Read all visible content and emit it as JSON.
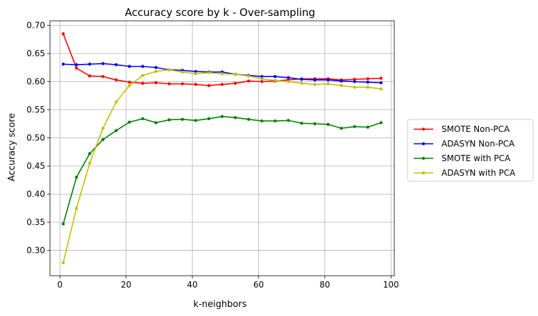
{
  "chart_data": {
    "type": "line",
    "title": "Accuracy score by k - Over-sampling",
    "xlabel": "k-neighbors",
    "ylabel": "Accuracy score",
    "xlim": [
      -3,
      101
    ],
    "ylim": [
      0.255,
      0.708
    ],
    "xticks": [
      0,
      20,
      40,
      60,
      80,
      100
    ],
    "xtick_labels": [
      "0",
      "20",
      "40",
      "60",
      "80",
      "100"
    ],
    "yticks": [
      0.3,
      0.35,
      0.4,
      0.45,
      0.5,
      0.55,
      0.6,
      0.65,
      0.7
    ],
    "ytick_labels": [
      "0.30",
      "0.35",
      "0.40",
      "0.45",
      "0.50",
      "0.55",
      "0.60",
      "0.65",
      "0.70"
    ],
    "grid": true,
    "legend_position": "outside right",
    "x": [
      1,
      5,
      9,
      13,
      17,
      21,
      25,
      29,
      33,
      37,
      41,
      45,
      49,
      53,
      57,
      61,
      65,
      69,
      73,
      77,
      81,
      85,
      89,
      93,
      97
    ],
    "series": [
      {
        "name": "SMOTE Non-PCA",
        "color": "#ff0000",
        "values": [
          0.685,
          0.624,
          0.61,
          0.609,
          0.603,
          0.599,
          0.597,
          0.598,
          0.596,
          0.596,
          0.595,
          0.593,
          0.595,
          0.597,
          0.601,
          0.6,
          0.601,
          0.603,
          0.605,
          0.605,
          0.605,
          0.603,
          0.604,
          0.605,
          0.606
        ]
      },
      {
        "name": "ADASYN Non-PCA",
        "color": "#0000ff",
        "values": [
          0.631,
          0.63,
          0.631,
          0.632,
          0.63,
          0.627,
          0.627,
          0.625,
          0.621,
          0.62,
          0.618,
          0.617,
          0.617,
          0.613,
          0.611,
          0.609,
          0.609,
          0.607,
          0.604,
          0.603,
          0.603,
          0.601,
          0.6,
          0.599,
          0.598
        ]
      },
      {
        "name": "SMOTE with PCA",
        "color": "#008000",
        "values": [
          0.347,
          0.43,
          0.472,
          0.497,
          0.513,
          0.528,
          0.534,
          0.527,
          0.532,
          0.533,
          0.531,
          0.534,
          0.538,
          0.536,
          0.533,
          0.53,
          0.53,
          0.531,
          0.526,
          0.525,
          0.524,
          0.517,
          0.52,
          0.519,
          0.527
        ]
      },
      {
        "name": "ADASYN with PCA",
        "color": "#bfbf00",
        "values": [
          0.278,
          0.375,
          0.455,
          0.517,
          0.564,
          0.593,
          0.611,
          0.618,
          0.621,
          0.617,
          0.614,
          0.616,
          0.614,
          0.613,
          0.61,
          0.605,
          0.602,
          0.6,
          0.597,
          0.595,
          0.596,
          0.593,
          0.59,
          0.59,
          0.587
        ]
      }
    ]
  }
}
